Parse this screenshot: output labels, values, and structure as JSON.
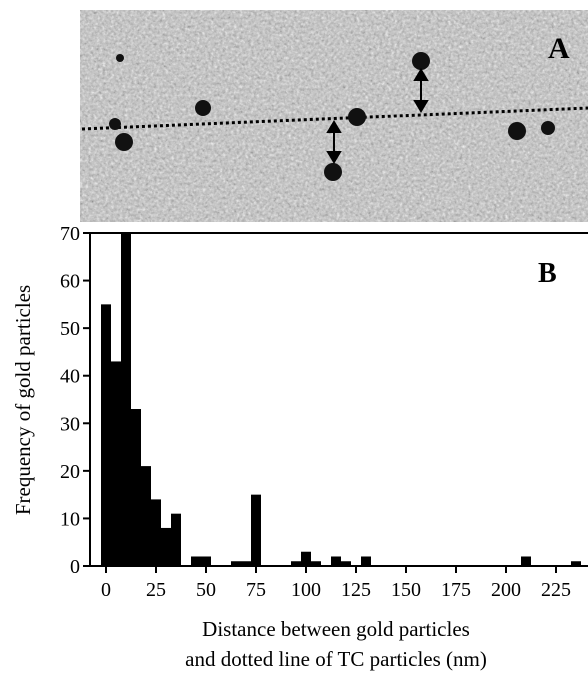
{
  "chart_data": {
    "type": "histogram",
    "panel_a_label": "A",
    "panel_b_label": "B",
    "ylabel": "Frequency of gold particles",
    "xlabel": [
      "Distance between gold particles",
      "and dotted line of TC particles (nm)"
    ],
    "bins": [
      -2.5,
      2.5,
      7.5,
      12.5,
      17.5,
      22.5,
      27.5,
      32.5,
      37.5,
      42.5,
      47.5,
      52.5,
      57.5,
      62.5,
      67.5,
      72.5,
      77.5,
      82.5,
      87.5,
      92.5,
      97.5,
      102.5,
      107.5,
      112.5,
      117.5,
      122.5,
      127.5,
      132.5,
      137.5,
      142.5,
      147.5,
      152.5,
      157.5,
      162.5,
      167.5,
      172.5,
      177.5,
      182.5,
      187.5,
      192.5,
      197.5,
      202.5,
      207.5,
      212.5,
      217.5,
      222.5,
      227.5,
      232.5,
      237.5
    ],
    "counts": [
      55,
      43,
      70,
      33,
      21,
      14,
      8,
      11,
      0,
      2,
      2,
      0,
      0,
      1,
      1,
      15,
      0,
      0,
      0,
      1,
      3,
      1,
      0,
      2,
      1,
      0,
      2,
      0,
      0,
      0,
      0,
      0,
      0,
      0,
      0,
      0,
      0,
      0,
      0,
      0,
      0,
      0,
      2,
      0,
      0,
      0,
      0,
      1
    ],
    "color": "#000000",
    "xlim": [
      -8,
      241
    ],
    "ylim": [
      0,
      70
    ],
    "xticks": [
      0,
      25,
      50,
      75,
      100,
      125,
      150,
      175,
      200,
      225
    ],
    "yticks": [
      0,
      10,
      20,
      30,
      40,
      50,
      60,
      70
    ]
  }
}
